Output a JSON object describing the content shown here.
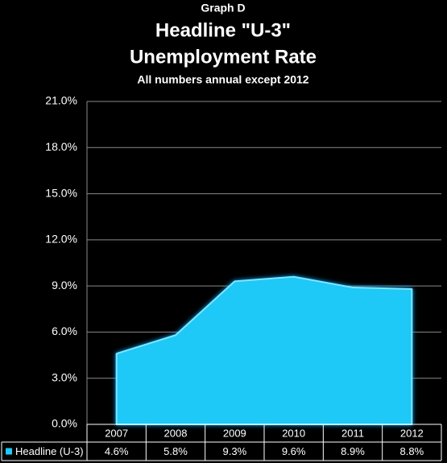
{
  "chart_data": {
    "type": "area",
    "supertitle": "Graph D",
    "title": "Headline \"U-3\"",
    "title2": "Unemployment Rate",
    "subtitle": "All numbers annual except 2012",
    "categories": [
      "2007",
      "2008",
      "2009",
      "2010",
      "2011",
      "2012"
    ],
    "series": [
      {
        "name": "Headline (U-3)",
        "color": "#1ec8f7",
        "values": [
          4.6,
          5.8,
          9.3,
          9.6,
          8.9,
          8.8
        ],
        "value_labels": [
          "4.6%",
          "5.8%",
          "9.3%",
          "9.6%",
          "8.9%",
          "8.8%"
        ]
      }
    ],
    "ylim": [
      0,
      21
    ],
    "yticks": [
      {
        "value": 0,
        "label": "0.0%"
      },
      {
        "value": 3,
        "label": "3.0%"
      },
      {
        "value": 6,
        "label": "6.0%"
      },
      {
        "value": 9,
        "label": "9.0%"
      },
      {
        "value": 12,
        "label": "12.0%"
      },
      {
        "value": 15,
        "label": "15.0%"
      },
      {
        "value": 18,
        "label": "18.0%"
      },
      {
        "value": 21,
        "label": "21.0%"
      }
    ],
    "grid": true,
    "data_table": true
  }
}
